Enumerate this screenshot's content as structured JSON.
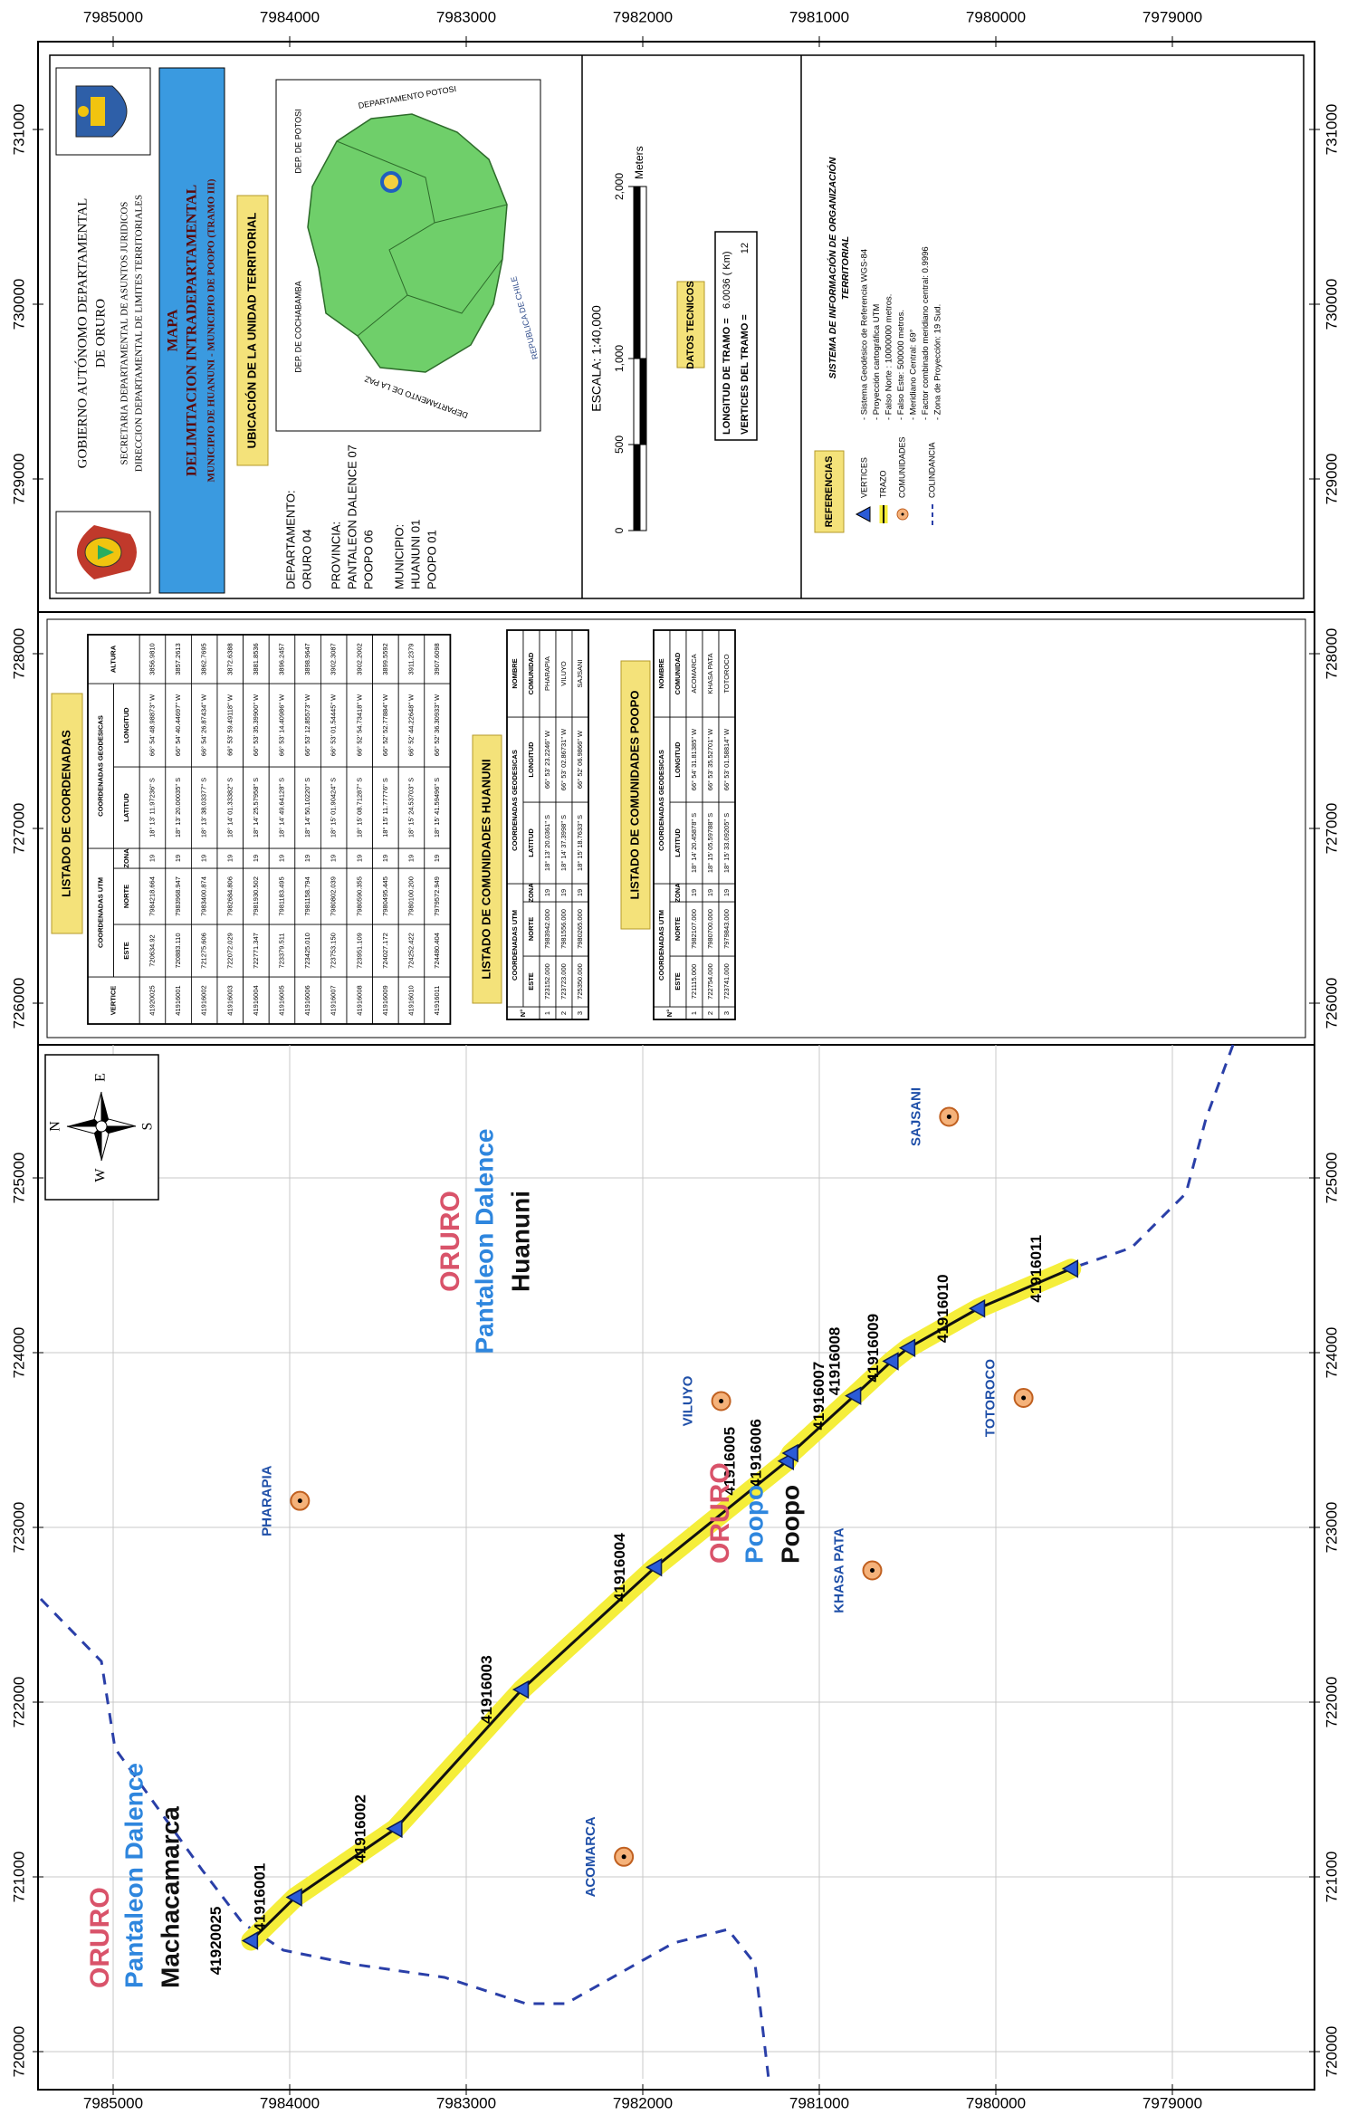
{
  "frame": {
    "northing_ticks": [
      7985000,
      7984000,
      7983000,
      7982000,
      7981000,
      7980000,
      7979000
    ],
    "easting_ticks": [
      720000,
      721000,
      722000,
      723000,
      724000,
      725000,
      726000,
      727000,
      728000,
      729000,
      730000,
      731000
    ]
  },
  "map": {
    "regions": [
      {
        "department": "ORURO",
        "province": "Pantaleon Dalence",
        "municipality": "Machacamarca"
      },
      {
        "department": "ORURO",
        "province": "Pantaleon Dalence",
        "municipality": "Huanuni"
      },
      {
        "department": "ORURO",
        "province": "Poopo",
        "municipality": "Poopo"
      }
    ],
    "north_arrow": {
      "n": "N",
      "s": "S",
      "e": "E",
      "w": "W"
    }
  },
  "header": {
    "institution": [
      "GOBIERNO AUTÓNOMO DEPARTAMENTAL",
      "DE ORURO",
      "SECRETARIA DEPARTAMENTAL DE ASUNTOS JURIDICOS",
      "DIRECCION DEPARTAMENTAL DE LIMITES TERRITORIALES"
    ],
    "map_title": [
      "MAPA",
      "DELIMITACION INTRADEPARTAMENTAL",
      "MUNICIPIO DE HUANUNI - MUNICIPIO DE POOPO (TRAMO III)"
    ],
    "location_title": "UBICACIÓN DE LA UNIDAD TERRITORIAL",
    "admin": [
      "DEPARTAMENTO:",
      "ORURO 04",
      "PROVINCIA:",
      "PANTALEON DALENCE 07",
      "POOPO 06",
      "MUNICIPIO:",
      "HUANUNI 01",
      "POOPO 01"
    ],
    "location_map": [
      "DEP. DE COCHABAMBA",
      "DEP. DE POTOSI",
      "DEPARTAMENTO DE LA PAZ",
      "DEPARTAMENTO POTOSI",
      "REPUBLICA DE CHILE"
    ]
  },
  "scale": {
    "title": "ESCALA: 1:40,000",
    "unit": "Meters",
    "ticks": [
      0,
      500,
      {
        "value": 1000,
        "label": "1,000"
      },
      {
        "value": 2000,
        "label": "2,000"
      }
    ]
  },
  "technical": {
    "title": "DATOS TECNICOS",
    "rows": [
      [
        "LONGITUD DE TRAMO =",
        "6.0036 ( Km)"
      ],
      [
        "VERTICES DEL TRAMO =",
        "12"
      ]
    ]
  },
  "references": {
    "title": "REFERENCIAS",
    "items": [
      "VERTICES",
      "TRAZO",
      "COMUNIDADES",
      "COLINDANCIA"
    ]
  },
  "system": {
    "title": [
      "SISTEMA DE INFORMACIÓN DE ORGANIZACIÓN",
      "TERRITORIAL"
    ],
    "items": [
      "- Sistema Geodésico de Referencia WGS-84",
      "- Proyección cartográfica UTM",
      "- Falso Norte : 10000000 metros.",
      "- Falso Este: 500000 metros.",
      "- Meridiano Central: 69°",
      "- Factor combinado meridiano central: 0.9996",
      "- Zona de Proyección: 19 Sud."
    ]
  },
  "tables": {
    "vertices": {
      "title": "LISTADO DE COORDENADAS",
      "header_top": [
        "VERTICE",
        "COORDENADAS UTM",
        "COORDENADAS GEODESICAS",
        "ALTURA"
      ],
      "header_sub": [
        "ESTE",
        "NORTE",
        "ZONA",
        "LATITUD",
        "LONGITUD"
      ],
      "rows": [
        [
          "41920025",
          "720634.92",
          "7984218.664",
          "19",
          "18° 13' 11.97236\" S",
          "66° 54' 48.98873\" W",
          "3856.9810"
        ],
        [
          "41916001",
          "720883.110",
          "7983968.947",
          "19",
          "18° 13' 20.00035\" S",
          "66° 54' 40.44697\" W",
          "3857.2613"
        ],
        [
          "41916002",
          "721275.606",
          "7983400.874",
          "19",
          "18° 13' 38.03377\" S",
          "66° 54' 26.87434\" W",
          "3862.7695"
        ],
        [
          "41916003",
          "722072.029",
          "7982684.806",
          "19",
          "18° 14' 01.33382\" S",
          "66° 53' 59.49118\" W",
          "3872.6388"
        ],
        [
          "41916004",
          "722771.347",
          "7981930.502",
          "19",
          "18° 14' 25.57958\" S",
          "66° 53' 35.39900\" W",
          "3881.8536"
        ],
        [
          "41916005",
          "723379.511",
          "7981183.495",
          "19",
          "18° 14' 49.64128\" S",
          "66° 53' 14.40986\" W",
          "3896.2457"
        ],
        [
          "41916006",
          "723425.010",
          "7981158.794",
          "19",
          "18° 14' 50.10220\" S",
          "66° 53' 12.85573\" W",
          "3898.9647"
        ],
        [
          "41916007",
          "723753.150",
          "7980802.039",
          "19",
          "18° 15' 01.90424\" S",
          "66° 53' 01.54445\" W",
          "3902.3087"
        ],
        [
          "41916008",
          "723951.109",
          "7980590.355",
          "19",
          "18° 15' 08.71287\" S",
          "66° 52' 54.73418\" W",
          "3902.2002"
        ],
        [
          "41916009",
          "724027.172",
          "7980495.445",
          "19",
          "18° 15' 11.77776\" S",
          "66° 52' 52.77884\" W",
          "3899.5592"
        ],
        [
          "41916010",
          "724252.422",
          "7980100.200",
          "19",
          "18° 15' 24.53703\" S",
          "66° 52' 44.22648\" W",
          "3911.2379"
        ],
        [
          "41916011",
          "724480.404",
          "7979572.949",
          "19",
          "18° 15' 41.59496\" S",
          "66° 52' 36.30933\" W",
          "3907.6098"
        ]
      ]
    },
    "huanuni": {
      "title": "LISTADO DE COMUNIDADES HUANUNI",
      "header_top": [
        "N°",
        "COORDENADAS UTM",
        "COORDENADAS GEODESICAS",
        "NOMBRE"
      ],
      "header_sub": [
        "ESTE",
        "NORTE",
        "ZONA",
        "LATITUD",
        "LONGITUD",
        "COMUNIDAD"
      ],
      "rows": [
        [
          "1",
          "723152.000",
          "7983942.000",
          "19",
          "18° 13' 20.0361\" S",
          "66° 53' 23.2246\" W",
          "PHARAPIA"
        ],
        [
          "2",
          "723723.000",
          "7981556.000",
          "19",
          "18° 14' 37.3998\" S",
          "66° 53' 02.86731\" W",
          "VILUYO"
        ],
        [
          "3",
          "725350.000",
          "7980265.000",
          "19",
          "18° 15' 18.7633\" S",
          "66° 52' 06.9866\" W",
          "SAJSANI"
        ]
      ]
    },
    "poopo": {
      "title": "LISTADO DE COMUNIDADES POOPO",
      "header_top": [
        "N°",
        "COORDENADAS UTM",
        "COORDENADAS GEODESICAS",
        "NOMBRE"
      ],
      "header_sub": [
        "ESTE",
        "NORTE",
        "ZONA",
        "LATITUD",
        "LONGITUD",
        "COMUNIDAD"
      ],
      "rows": [
        [
          "1",
          "721115.000",
          "7982107.000",
          "19",
          "18° 14' 20.45878\" S",
          "66° 54' 31.81385\" W",
          "ACOMARCA"
        ],
        [
          "2",
          "722754.000",
          "7980700.000",
          "19",
          "18° 15' 05.59788\" S",
          "66° 53' 35.52701\" W",
          "KHASA PATA"
        ],
        [
          "3",
          "723741.000",
          "7979843.000",
          "19",
          "18° 15' 33.09205\" S",
          "66° 53' 01.58814\" W",
          "TOTOROCO"
        ]
      ]
    }
  }
}
